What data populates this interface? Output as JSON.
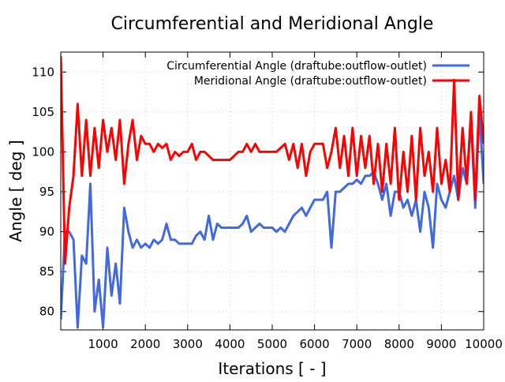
{
  "chart_data": {
    "type": "line",
    "title": "Circumferential and Meridional Angle",
    "xlabel": "Iterations [ - ]",
    "ylabel": "Angle [ deg ]",
    "xlim": [
      0,
      10000
    ],
    "ylim": [
      77.7,
      112.5
    ],
    "xticks": [
      1000,
      2000,
      3000,
      4000,
      5000,
      6000,
      7000,
      8000,
      9000,
      10000
    ],
    "yticks": [
      80,
      85,
      90,
      95,
      100,
      105,
      110
    ],
    "grid": true,
    "legend_position": "top-right",
    "x": [
      0,
      100,
      200,
      300,
      400,
      500,
      600,
      700,
      800,
      900,
      1000,
      1100,
      1200,
      1300,
      1400,
      1500,
      1600,
      1700,
      1800,
      1900,
      2000,
      2100,
      2200,
      2300,
      2400,
      2500,
      2600,
      2700,
      2800,
      2900,
      3000,
      3100,
      3200,
      3300,
      3400,
      3500,
      3600,
      3700,
      3800,
      3900,
      4000,
      4100,
      4200,
      4300,
      4400,
      4500,
      4600,
      4700,
      4800,
      4900,
      5000,
      5100,
      5200,
      5300,
      5400,
      5500,
      5600,
      5700,
      5800,
      5900,
      6000,
      6100,
      6200,
      6300,
      6400,
      6500,
      6600,
      6700,
      6800,
      6900,
      7000,
      7100,
      7200,
      7300,
      7400,
      7500,
      7600,
      7700,
      7800,
      7900,
      8000,
      8100,
      8200,
      8300,
      8400,
      8500,
      8600,
      8700,
      8800,
      8900,
      9000,
      9100,
      9200,
      9300,
      9400,
      9500,
      9600,
      9700,
      9800,
      9900,
      10000
    ],
    "series": [
      {
        "name": "Circumferential Angle (draftube:outflow-outlet)",
        "color": "#4169e1",
        "values": [
          79,
          90,
          90,
          89,
          78,
          87,
          86,
          96,
          80,
          84,
          78,
          88,
          82,
          86,
          81,
          93,
          90,
          88,
          89,
          88,
          88.5,
          88,
          89,
          88.5,
          89,
          91,
          89,
          89,
          88.5,
          88.5,
          88.5,
          88.5,
          89.5,
          90,
          89,
          92,
          89,
          91,
          90.5,
          90.5,
          90.5,
          90.5,
          90.5,
          91,
          92,
          90,
          90.5,
          91,
          90.5,
          90.5,
          90.5,
          90,
          90.5,
          90,
          91,
          92,
          92.5,
          93,
          92,
          93,
          94,
          94,
          94,
          95,
          88,
          95,
          95,
          95.5,
          96,
          96,
          96.5,
          96,
          97,
          97,
          97.5,
          96,
          94,
          96,
          92,
          95,
          95,
          93,
          94,
          92,
          94,
          90,
          95,
          93,
          88,
          96,
          94,
          93,
          95,
          97,
          94,
          98,
          96,
          104,
          93,
          105,
          96
        ]
      },
      {
        "name": "Meridional Angle (draftube:outflow-outlet)",
        "color": "#ff0000",
        "values": [
          112,
          86,
          93,
          97,
          106,
          97,
          104,
          97,
          103,
          98,
          104,
          100,
          103,
          99,
          104,
          96,
          101,
          104,
          99,
          102,
          101,
          101,
          100,
          101,
          100.5,
          101,
          99,
          100,
          99.5,
          100,
          100,
          101,
          99,
          100,
          100,
          99.5,
          99,
          99,
          99,
          99,
          99,
          99.5,
          100,
          100,
          101,
          100,
          101,
          100,
          100,
          100,
          100,
          100,
          100.5,
          101,
          99,
          101,
          98,
          101,
          97,
          100,
          101,
          101,
          101,
          98,
          100,
          103,
          98,
          102,
          97,
          103,
          97,
          102,
          98,
          102,
          96,
          101,
          95,
          101,
          96,
          103,
          94,
          100,
          95,
          102,
          94,
          103,
          97,
          100,
          95,
          103,
          96,
          99,
          95,
          109,
          94,
          103,
          96,
          105,
          94,
          107,
          101
        ]
      }
    ]
  }
}
